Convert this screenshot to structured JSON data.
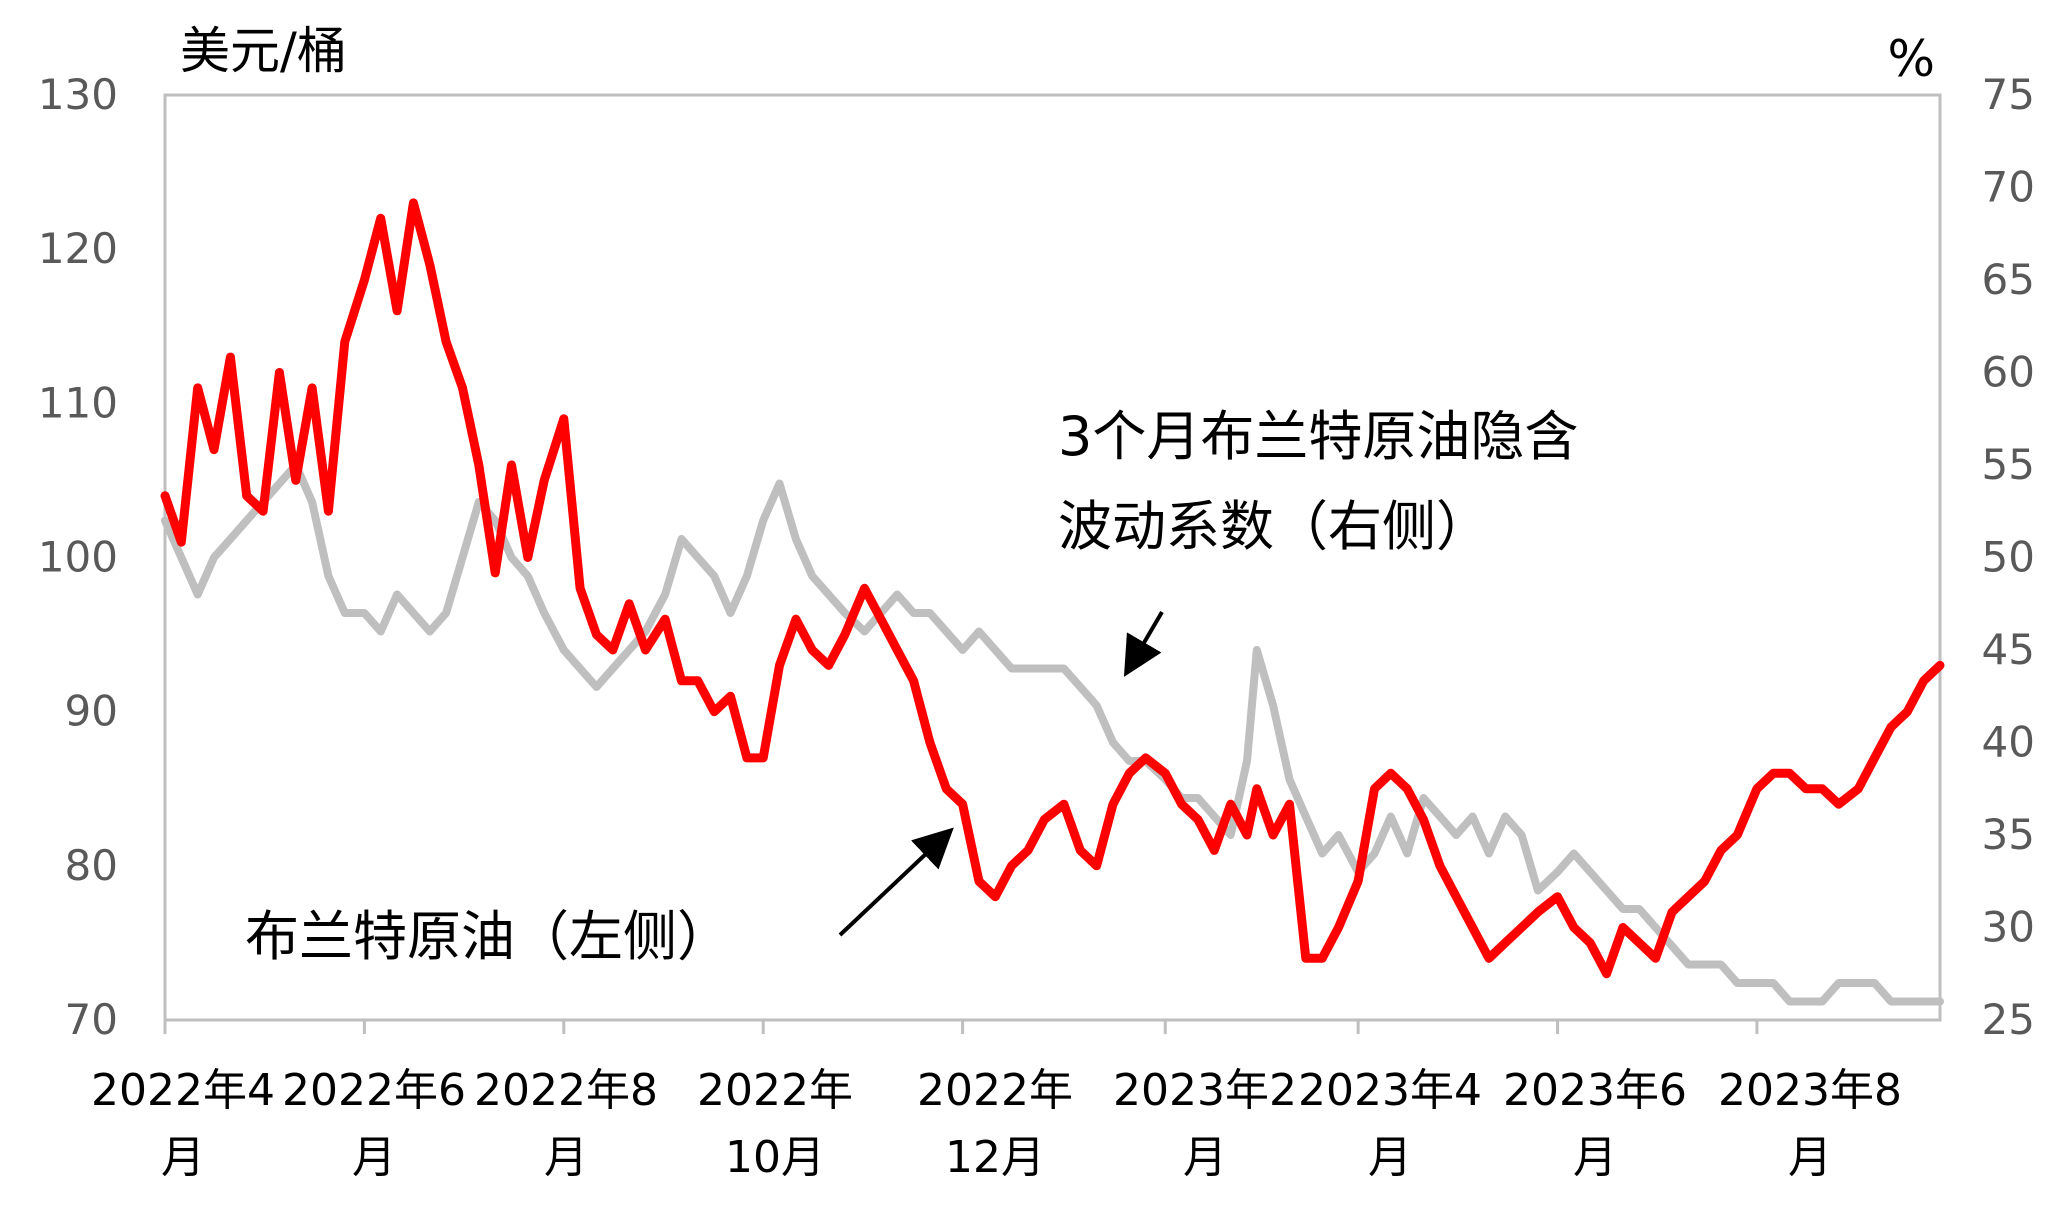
{
  "chart_data": {
    "type": "line",
    "y_left_unit": "美元/桶",
    "y_right_unit": "%",
    "ylim_left": [
      70,
      130
    ],
    "ylim_right": [
      25,
      75
    ],
    "yticks_left": [
      70,
      80,
      90,
      100,
      110,
      120,
      130
    ],
    "yticks_right": [
      25,
      30,
      35,
      40,
      45,
      50,
      55,
      60,
      65,
      70,
      75
    ],
    "x_tick_labels": [
      [
        "2022年4",
        "月"
      ],
      [
        "2022年6",
        "月"
      ],
      [
        "2022年8",
        "月"
      ],
      [
        "2022年",
        "10月"
      ],
      [
        "2022年",
        "12月"
      ],
      [
        "2023年2",
        "月"
      ],
      [
        "2023年4",
        "月"
      ],
      [
        "2023年6",
        "月"
      ],
      [
        "2023年8",
        "月"
      ]
    ],
    "grid": false,
    "legend": "none",
    "annotations": {
      "brent": "布兰特原油（左侧）",
      "vol_line1": "3个月布兰特原油隐含",
      "vol_line2": "波动系数（右侧）"
    },
    "colors": {
      "brent": "#ff0000",
      "vol": "#bfbfbf",
      "axis": "#bfbfbf"
    },
    "series": [
      {
        "key": "brent",
        "axis": "left",
        "x": [
          "2022-04-01",
          "2022-04-06",
          "2022-04-11",
          "2022-04-16",
          "2022-04-21",
          "2022-04-26",
          "2022-05-01",
          "2022-05-06",
          "2022-05-11",
          "2022-05-16",
          "2022-05-21",
          "2022-05-26",
          "2022-06-01",
          "2022-06-06",
          "2022-06-11",
          "2022-06-16",
          "2022-06-21",
          "2022-06-26",
          "2022-07-01",
          "2022-07-06",
          "2022-07-11",
          "2022-07-16",
          "2022-07-21",
          "2022-07-26",
          "2022-08-01",
          "2022-08-06",
          "2022-08-11",
          "2022-08-16",
          "2022-08-21",
          "2022-08-26",
          "2022-09-01",
          "2022-09-06",
          "2022-09-11",
          "2022-09-16",
          "2022-09-21",
          "2022-09-26",
          "2022-10-01",
          "2022-10-06",
          "2022-10-11",
          "2022-10-16",
          "2022-10-21",
          "2022-10-26",
          "2022-11-01",
          "2022-11-06",
          "2022-11-11",
          "2022-11-16",
          "2022-11-21",
          "2022-11-26",
          "2022-12-01",
          "2022-12-06",
          "2022-12-11",
          "2022-12-16",
          "2022-12-21",
          "2022-12-26",
          "2023-01-01",
          "2023-01-06",
          "2023-01-11",
          "2023-01-16",
          "2023-01-21",
          "2023-01-26",
          "2023-02-01",
          "2023-02-06",
          "2023-02-11",
          "2023-02-16",
          "2023-02-21",
          "2023-02-26",
          "2023-03-01",
          "2023-03-06",
          "2023-03-11",
          "2023-03-16",
          "2023-03-21",
          "2023-03-26",
          "2023-04-01",
          "2023-04-06",
          "2023-04-11",
          "2023-04-16",
          "2023-04-21",
          "2023-04-26",
          "2023-05-01",
          "2023-05-06",
          "2023-05-11",
          "2023-05-16",
          "2023-05-21",
          "2023-05-26",
          "2023-06-01",
          "2023-06-06",
          "2023-06-11",
          "2023-06-16",
          "2023-06-21",
          "2023-06-26",
          "2023-07-01",
          "2023-07-06",
          "2023-07-11",
          "2023-07-16",
          "2023-07-21",
          "2023-07-26",
          "2023-08-01",
          "2023-08-06",
          "2023-08-11",
          "2023-08-16",
          "2023-08-21",
          "2023-08-26",
          "2023-09-01",
          "2023-09-06",
          "2023-09-11",
          "2023-09-16",
          "2023-09-21",
          "2023-09-26"
        ],
        "values": [
          104,
          101,
          111,
          107,
          113,
          104,
          103,
          112,
          105,
          111,
          103,
          114,
          118,
          122,
          116,
          123,
          119,
          114,
          111,
          106,
          99,
          106,
          100,
          105,
          109,
          98,
          95,
          94,
          97,
          94,
          96,
          92,
          92,
          90,
          91,
          87,
          87,
          93,
          96,
          94,
          93,
          95,
          98,
          96,
          94,
          92,
          88,
          85,
          84,
          79,
          78,
          80,
          81,
          83,
          84,
          81,
          80,
          84,
          86,
          87,
          86,
          84,
          83,
          81,
          84,
          82,
          85,
          82,
          84,
          74,
          74,
          76,
          79,
          85,
          86,
          85,
          83,
          80,
          78,
          76,
          74,
          75,
          76,
          77,
          78,
          76,
          75,
          73,
          76,
          75,
          74,
          77,
          78,
          79,
          81,
          82,
          85,
          86,
          86,
          85,
          85,
          84,
          85,
          87,
          89,
          90,
          92,
          93
        ]
      },
      {
        "key": "vol",
        "axis": "right",
        "x": [
          "2022-04-01",
          "2022-04-06",
          "2022-04-11",
          "2022-04-16",
          "2022-04-21",
          "2022-04-26",
          "2022-05-01",
          "2022-05-06",
          "2022-05-11",
          "2022-05-16",
          "2022-05-21",
          "2022-05-26",
          "2022-06-01",
          "2022-06-06",
          "2022-06-11",
          "2022-06-16",
          "2022-06-21",
          "2022-06-26",
          "2022-07-01",
          "2022-07-06",
          "2022-07-11",
          "2022-07-16",
          "2022-07-21",
          "2022-07-26",
          "2022-08-01",
          "2022-08-06",
          "2022-08-11",
          "2022-08-16",
          "2022-08-21",
          "2022-08-26",
          "2022-09-01",
          "2022-09-06",
          "2022-09-11",
          "2022-09-16",
          "2022-09-21",
          "2022-09-26",
          "2022-10-01",
          "2022-10-06",
          "2022-10-11",
          "2022-10-16",
          "2022-10-21",
          "2022-10-26",
          "2022-11-01",
          "2022-11-06",
          "2022-11-11",
          "2022-11-16",
          "2022-11-21",
          "2022-11-26",
          "2022-12-01",
          "2022-12-06",
          "2022-12-11",
          "2022-12-16",
          "2022-12-21",
          "2022-12-26",
          "2023-01-01",
          "2023-01-06",
          "2023-01-11",
          "2023-01-16",
          "2023-01-21",
          "2023-01-26",
          "2023-02-01",
          "2023-02-06",
          "2023-02-11",
          "2023-02-16",
          "2023-02-21",
          "2023-02-26",
          "2023-03-01",
          "2023-03-06",
          "2023-03-11",
          "2023-03-16",
          "2023-03-21",
          "2023-03-26",
          "2023-04-01",
          "2023-04-06",
          "2023-04-11",
          "2023-04-16",
          "2023-04-21",
          "2023-04-26",
          "2023-05-01",
          "2023-05-06",
          "2023-05-11",
          "2023-05-16",
          "2023-05-21",
          "2023-05-26",
          "2023-06-01",
          "2023-06-06",
          "2023-06-11",
          "2023-06-16",
          "2023-06-21",
          "2023-06-26",
          "2023-07-01",
          "2023-07-06",
          "2023-07-11",
          "2023-07-16",
          "2023-07-21",
          "2023-07-26",
          "2023-08-01",
          "2023-08-06",
          "2023-08-11",
          "2023-08-16",
          "2023-08-21",
          "2023-08-26",
          "2023-09-01",
          "2023-09-06",
          "2023-09-11",
          "2023-09-16",
          "2023-09-21",
          "2023-09-26"
        ],
        "values": [
          52,
          50,
          48,
          50,
          51,
          52,
          53,
          54,
          55,
          53,
          49,
          47,
          47,
          46,
          48,
          47,
          46,
          47,
          50,
          53,
          52,
          50,
          49,
          47,
          45,
          44,
          43,
          44,
          45,
          46,
          48,
          51,
          50,
          49,
          47,
          49,
          52,
          54,
          51,
          49,
          48,
          47,
          46,
          47,
          48,
          47,
          47,
          46,
          45,
          46,
          45,
          44,
          44,
          44,
          44,
          43,
          42,
          40,
          39,
          39,
          38,
          37,
          37,
          36,
          35,
          39,
          45,
          42,
          38,
          36,
          34,
          35,
          33,
          34,
          36,
          34,
          37,
          36,
          35,
          36,
          34,
          36,
          35,
          32,
          33,
          34,
          33,
          32,
          31,
          31,
          30,
          29,
          28,
          28,
          28,
          27,
          27,
          27,
          26,
          26,
          26,
          27,
          27,
          27,
          26,
          26,
          26,
          26
        ]
      }
    ]
  }
}
